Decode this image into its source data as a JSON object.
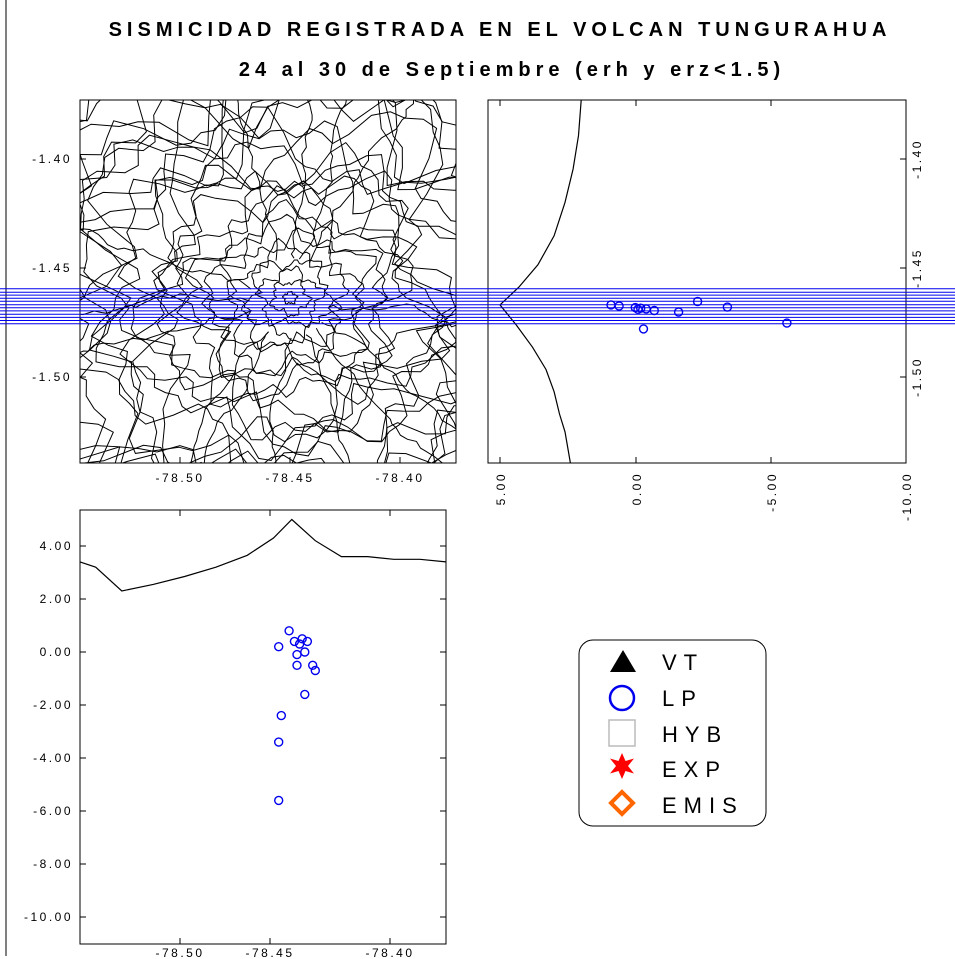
{
  "title": {
    "line1": "SISMICIDAD REGISTRADA EN EL VOLCAN TUNGURAHUA",
    "line2": "24 al 30 de Septiembre (erh y erz<1.5)"
  },
  "colors": {
    "lp": "#0000ee",
    "vt": "#000000",
    "hyb": "#bbbbbb",
    "exp": "#ff0000",
    "emis": "#ff6600"
  },
  "legend": [
    {
      "symbol": "triangle-filled",
      "label": "VT"
    },
    {
      "symbol": "circle-open",
      "label": "LP"
    },
    {
      "symbol": "square-open",
      "label": "HYB"
    },
    {
      "symbol": "star-filled",
      "label": "EXP"
    },
    {
      "symbol": "diamond-open",
      "label": "EMIS"
    }
  ],
  "axes": {
    "map_x_ticks": [
      "-78.50",
      "-78.45",
      "-78.40"
    ],
    "map_y_ticks": [
      "-1.40",
      "-1.45",
      "-1.50"
    ],
    "ns_x_ticks": [
      "5.00",
      "0.00",
      "-5.00",
      "-10.00"
    ],
    "ns_y_ticks": [
      "-1.40",
      "-1.45",
      "-1.50"
    ],
    "ew_x_ticks": [
      "-78.50",
      "-78.45",
      "-78.40"
    ],
    "ew_y_ticks": [
      "4.00",
      "2.00",
      "0.00",
      "-2.00",
      "-4.00",
      "-6.00",
      "-8.00",
      "-10.00"
    ]
  },
  "chart_data": [
    {
      "type": "scatter",
      "panel": "map",
      "title": "",
      "xlabel": "",
      "ylabel": "",
      "xlim": [
        -78.528,
        -78.388
      ],
      "ylim": [
        -1.537,
        -1.374
      ],
      "series": [],
      "note_lines": "blue horizontal lines across map and N-S section",
      "line_lat": [
        -1.4588,
        -1.4603,
        -1.4616,
        -1.463,
        -1.4644,
        -1.4659,
        -1.4673,
        -1.4687,
        -1.4702,
        -1.4716,
        -1.473,
        -1.4745
      ]
    },
    {
      "type": "scatter",
      "panel": "ns-section",
      "xlabel": "",
      "ylabel": "",
      "xlim": [
        5.5,
        -10.0
      ],
      "ylim": [
        -1.537,
        -1.374
      ],
      "series": [
        {
          "name": "LP",
          "depth": [
            0.9,
            0.6,
            0.0,
            -0.1,
            -0.4,
            -0.7,
            -1.6,
            -2.3,
            -3.4,
            -0.3,
            -5.6,
            -0.2
          ],
          "lat": [
            -1.466,
            -1.4665,
            -1.4672,
            -1.468,
            -1.4678,
            -1.4685,
            -1.4692,
            -1.4645,
            -1.467,
            -1.4768,
            -1.4742,
            -1.4675
          ]
        }
      ],
      "topo_depth": [
        2.0,
        2.1,
        2.3,
        2.6,
        3.0,
        3.6,
        4.3,
        5.0,
        4.4,
        3.8,
        3.3,
        3.0,
        2.8,
        2.6,
        2.5,
        2.4
      ],
      "topo_lat": [
        -1.374,
        -1.39,
        -1.405,
        -1.42,
        -1.435,
        -1.448,
        -1.458,
        -1.466,
        -1.475,
        -1.485,
        -1.495,
        -1.505,
        -1.515,
        -1.523,
        -1.53,
        -1.537
      ]
    },
    {
      "type": "scatter",
      "panel": "ew-section",
      "xlabel": "",
      "ylabel": "",
      "xlim": [
        -78.528,
        -78.388
      ],
      "ylim": [
        -10.5,
        5.2
      ],
      "series": [
        {
          "name": "LP",
          "lon": [
            -78.448,
            -78.446,
            -78.452,
            -78.443,
            -78.444,
            -78.442,
            -78.445,
            -78.441,
            -78.445,
            -78.439,
            -78.438,
            -78.442,
            -78.451,
            -78.452,
            -78.452
          ],
          "depth": [
            0.8,
            0.4,
            0.2,
            0.5,
            0.3,
            0.0,
            -0.1,
            0.4,
            -0.5,
            -0.5,
            -0.7,
            -1.6,
            -2.4,
            -3.4,
            -5.6
          ]
        }
      ],
      "topo_lon": [
        -78.528,
        -78.522,
        -78.512,
        -78.5,
        -78.488,
        -78.476,
        -78.464,
        -78.454,
        -78.447,
        -78.438,
        -78.428,
        -78.418,
        -78.408,
        -78.398,
        -78.388
      ],
      "topo_depth": [
        3.4,
        3.2,
        2.3,
        2.55,
        2.85,
        3.2,
        3.65,
        4.3,
        5.0,
        4.2,
        3.6,
        3.6,
        3.5,
        3.5,
        3.4
      ]
    }
  ]
}
